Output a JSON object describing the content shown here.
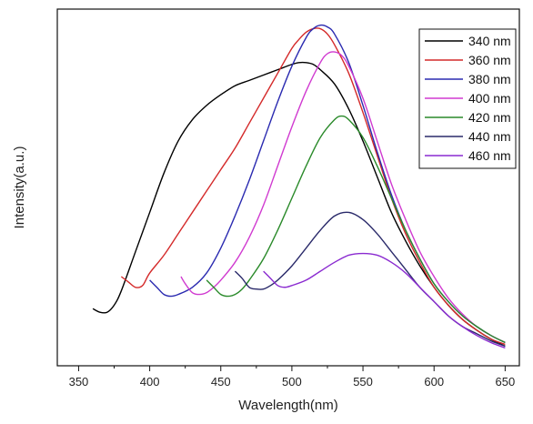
{
  "chart_data": {
    "type": "line",
    "title": "",
    "xlabel": "Wavelength(nm)",
    "ylabel": "Intensity(a.u.)",
    "xlim": [
      335,
      660
    ],
    "ylim": [
      0,
      1.0
    ],
    "xticks": [
      350,
      400,
      450,
      500,
      550,
      600,
      650
    ],
    "yticks_shown": false,
    "grid": false,
    "legend_position": "top-right",
    "series": [
      {
        "name": "340 nm",
        "color": "#000000",
        "x": [
          360,
          365,
          370,
          375,
          380,
          390,
          400,
          410,
          420,
          430,
          440,
          450,
          460,
          470,
          480,
          490,
          500,
          505,
          510,
          515,
          520,
          530,
          540,
          550,
          560,
          570,
          580,
          590,
          600,
          610,
          620,
          630,
          640,
          650
        ],
        "y": [
          0.16,
          0.15,
          0.15,
          0.17,
          0.21,
          0.32,
          0.43,
          0.54,
          0.63,
          0.69,
          0.73,
          0.76,
          0.785,
          0.8,
          0.815,
          0.83,
          0.845,
          0.85,
          0.85,
          0.845,
          0.83,
          0.79,
          0.72,
          0.63,
          0.53,
          0.43,
          0.35,
          0.28,
          0.22,
          0.17,
          0.13,
          0.1,
          0.075,
          0.055
        ]
      },
      {
        "name": "360 nm",
        "color": "#d42a2a",
        "x": [
          380,
          385,
          390,
          395,
          400,
          410,
          420,
          430,
          440,
          450,
          460,
          470,
          480,
          490,
          500,
          505,
          510,
          515,
          520,
          525,
          530,
          540,
          550,
          560,
          570,
          580,
          590,
          600,
          610,
          620,
          630,
          640,
          650
        ],
        "y": [
          0.25,
          0.235,
          0.22,
          0.225,
          0.26,
          0.31,
          0.37,
          0.43,
          0.49,
          0.55,
          0.61,
          0.68,
          0.75,
          0.82,
          0.89,
          0.915,
          0.935,
          0.945,
          0.945,
          0.93,
          0.9,
          0.82,
          0.71,
          0.59,
          0.47,
          0.37,
          0.29,
          0.22,
          0.17,
          0.13,
          0.1,
          0.075,
          0.06
        ]
      },
      {
        "name": "380 nm",
        "color": "#2a2ab0",
        "x": [
          400,
          405,
          410,
          415,
          420,
          430,
          440,
          450,
          460,
          470,
          480,
          490,
          500,
          510,
          515,
          520,
          525,
          530,
          540,
          550,
          560,
          570,
          580,
          590,
          600,
          610,
          620,
          630,
          640,
          650
        ],
        "y": [
          0.24,
          0.22,
          0.2,
          0.195,
          0.2,
          0.22,
          0.26,
          0.33,
          0.42,
          0.52,
          0.63,
          0.74,
          0.84,
          0.92,
          0.945,
          0.955,
          0.95,
          0.93,
          0.85,
          0.73,
          0.6,
          0.48,
          0.38,
          0.3,
          0.23,
          0.18,
          0.14,
          0.11,
          0.085,
          0.065
        ]
      },
      {
        "name": "400 nm",
        "color": "#d03ad0",
        "x": [
          422,
          425,
          430,
          435,
          440,
          445,
          450,
          460,
          470,
          480,
          490,
          500,
          510,
          520,
          525,
          530,
          535,
          540,
          550,
          560,
          570,
          580,
          590,
          600,
          610,
          620,
          630,
          640,
          650
        ],
        "y": [
          0.25,
          0.23,
          0.205,
          0.2,
          0.205,
          0.22,
          0.24,
          0.29,
          0.36,
          0.45,
          0.56,
          0.67,
          0.77,
          0.85,
          0.875,
          0.88,
          0.87,
          0.84,
          0.75,
          0.63,
          0.51,
          0.41,
          0.32,
          0.25,
          0.19,
          0.145,
          0.11,
          0.085,
          0.065
        ]
      },
      {
        "name": "420 nm",
        "color": "#2a8a2a",
        "x": [
          440,
          445,
          450,
          455,
          460,
          465,
          470,
          480,
          490,
          500,
          510,
          520,
          530,
          535,
          540,
          550,
          560,
          570,
          580,
          590,
          600,
          610,
          620,
          630,
          640,
          650
        ],
        "y": [
          0.24,
          0.22,
          0.2,
          0.195,
          0.2,
          0.215,
          0.24,
          0.3,
          0.38,
          0.47,
          0.56,
          0.64,
          0.69,
          0.7,
          0.69,
          0.64,
          0.56,
          0.47,
          0.38,
          0.3,
          0.23,
          0.18,
          0.14,
          0.11,
          0.085,
          0.065
        ]
      },
      {
        "name": "440 nm",
        "color": "#2a2a6a",
        "x": [
          460,
          465,
          470,
          475,
          480,
          485,
          490,
          500,
          510,
          520,
          530,
          540,
          550,
          560,
          570,
          580,
          590,
          600,
          610,
          620,
          630,
          640,
          650
        ],
        "y": [
          0.265,
          0.245,
          0.22,
          0.215,
          0.215,
          0.225,
          0.24,
          0.28,
          0.33,
          0.38,
          0.42,
          0.43,
          0.41,
          0.37,
          0.32,
          0.27,
          0.22,
          0.18,
          0.14,
          0.11,
          0.09,
          0.07,
          0.055
        ]
      },
      {
        "name": "460 nm",
        "color": "#8a2ad0",
        "x": [
          480,
          485,
          490,
          495,
          500,
          510,
          520,
          530,
          540,
          550,
          560,
          570,
          580,
          590,
          600,
          610,
          620,
          630,
          640,
          650
        ],
        "y": [
          0.265,
          0.245,
          0.225,
          0.22,
          0.225,
          0.24,
          0.265,
          0.29,
          0.31,
          0.315,
          0.31,
          0.29,
          0.26,
          0.22,
          0.18,
          0.14,
          0.11,
          0.085,
          0.065,
          0.05
        ]
      }
    ]
  }
}
